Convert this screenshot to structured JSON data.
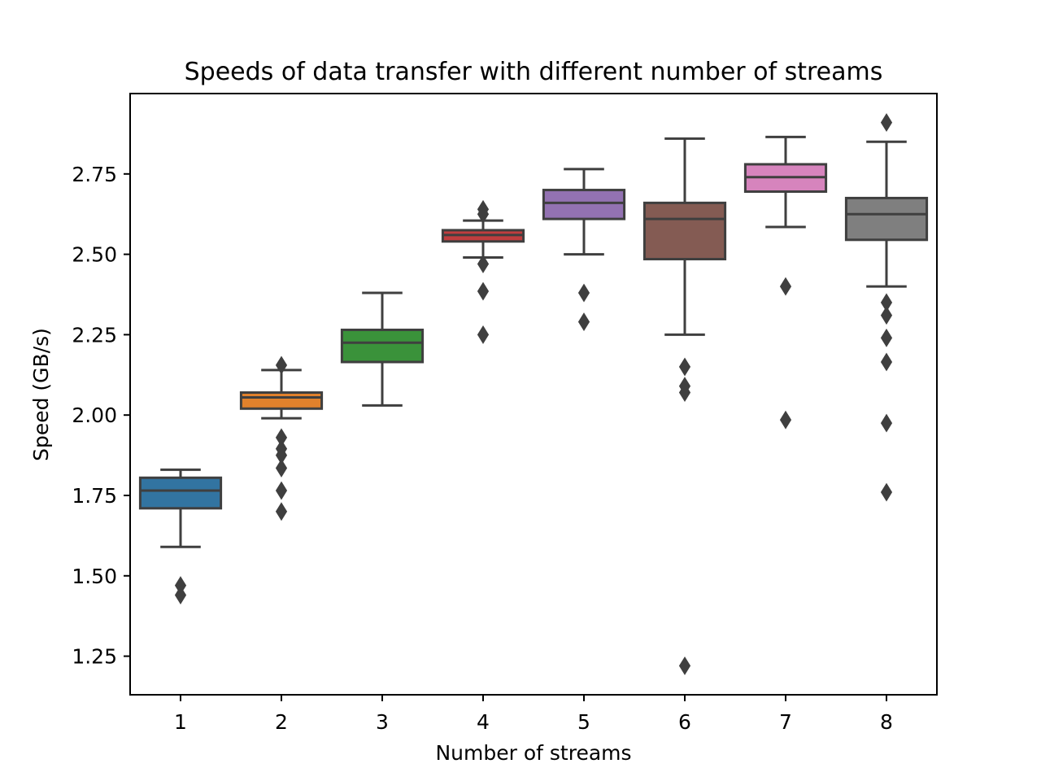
{
  "chart_data": {
    "type": "box",
    "title": "Speeds of data transfer with different number of streams",
    "xlabel": "Number of streams",
    "ylabel": "Speed (GB/s)",
    "categories": [
      "1",
      "2",
      "3",
      "4",
      "5",
      "6",
      "7",
      "8"
    ],
    "ylim": [
      1.13,
      3.0
    ],
    "yticks": [
      1.25,
      1.5,
      1.75,
      2.0,
      2.25,
      2.5,
      2.75
    ],
    "ytick_labels": [
      "1.25",
      "1.50",
      "1.75",
      "2.00",
      "2.25",
      "2.50",
      "2.75"
    ],
    "grid": false,
    "boxes": [
      {
        "category": "1",
        "color": "#3274a1",
        "whisker_low": 1.59,
        "q1": 1.71,
        "median": 1.765,
        "q3": 1.805,
        "whisker_high": 1.83,
        "outliers": [
          1.47,
          1.44
        ]
      },
      {
        "category": "2",
        "color": "#e1812c",
        "whisker_low": 1.99,
        "q1": 2.02,
        "median": 2.055,
        "q3": 2.07,
        "whisker_high": 2.14,
        "outliers": [
          2.155,
          1.93,
          1.895,
          1.875,
          1.835,
          1.765,
          1.7
        ]
      },
      {
        "category": "3",
        "color": "#3a923a",
        "whisker_low": 2.03,
        "q1": 2.165,
        "median": 2.225,
        "q3": 2.265,
        "whisker_high": 2.38,
        "outliers": []
      },
      {
        "category": "4",
        "color": "#c03d3e",
        "whisker_low": 2.49,
        "q1": 2.54,
        "median": 2.56,
        "q3": 2.575,
        "whisker_high": 2.605,
        "outliers": [
          2.64,
          2.625,
          2.47,
          2.385,
          2.25
        ]
      },
      {
        "category": "5",
        "color": "#9372b2",
        "whisker_low": 2.5,
        "q1": 2.61,
        "median": 2.66,
        "q3": 2.7,
        "whisker_high": 2.765,
        "outliers": [
          2.38,
          2.29
        ]
      },
      {
        "category": "6",
        "color": "#845b53",
        "whisker_low": 2.25,
        "q1": 2.485,
        "median": 2.61,
        "q3": 2.66,
        "whisker_high": 2.86,
        "outliers": [
          2.15,
          2.09,
          2.07,
          1.22
        ]
      },
      {
        "category": "7",
        "color": "#d684bd",
        "whisker_low": 2.585,
        "q1": 2.695,
        "median": 2.74,
        "q3": 2.78,
        "whisker_high": 2.865,
        "outliers": [
          2.4,
          1.985
        ]
      },
      {
        "category": "8",
        "color": "#7f7f7f",
        "whisker_low": 2.4,
        "q1": 2.545,
        "median": 2.625,
        "q3": 2.675,
        "whisker_high": 2.85,
        "outliers": [
          2.91,
          2.35,
          2.31,
          2.24,
          2.165,
          1.975,
          1.76
        ]
      }
    ]
  }
}
